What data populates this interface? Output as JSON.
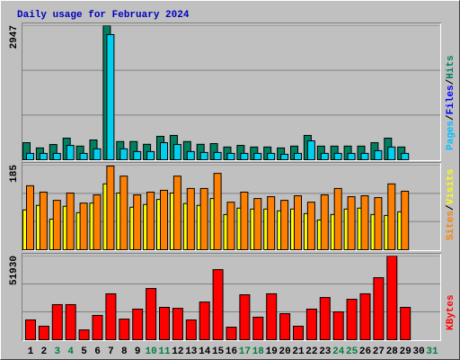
{
  "chart_data": [
    {
      "type": "bar",
      "title": "Daily usage for February 2024",
      "ylim": [
        0,
        2947
      ],
      "yticks": [
        2947
      ],
      "legend": [
        {
          "text": "Pages",
          "color": "#00c0ff"
        },
        {
          "text": "/",
          "color": "#000000"
        },
        {
          "text": "Files",
          "color": "#0000ff"
        },
        {
          "text": "/",
          "color": "#000000"
        },
        {
          "text": "Hits",
          "color": "#008060"
        }
      ],
      "series": [
        {
          "name": "Hits",
          "color": "#008060",
          "values": [
            375,
            260,
            335,
            475,
            300,
            435,
            2947,
            400,
            400,
            340,
            515,
            535,
            400,
            340,
            355,
            280,
            315,
            280,
            280,
            260,
            300,
            535,
            300,
            300,
            300,
            300,
            375,
            475,
            280,
            null,
            null
          ]
        },
        {
          "name": "Files",
          "color": "#00d0f0",
          "values": [
            140,
            140,
            140,
            315,
            140,
            240,
            2750,
            240,
            180,
            180,
            375,
            335,
            180,
            160,
            160,
            140,
            140,
            140,
            140,
            120,
            140,
            415,
            140,
            140,
            140,
            140,
            200,
            280,
            140,
            null,
            null
          ]
        }
      ]
    },
    {
      "type": "bar",
      "ylim": [
        0,
        185
      ],
      "yticks": [
        185
      ],
      "legend": [
        {
          "text": "Sites",
          "color": "#ff8000"
        },
        {
          "text": "/",
          "color": "#000000"
        },
        {
          "text": "Visits",
          "color": "#ffff00"
        }
      ],
      "series": [
        {
          "name": "Visits",
          "color": "#ffff00",
          "values": [
            87,
            97,
            67,
            95,
            81,
            102,
            144,
            124,
            93,
            99,
            110,
            124,
            101,
            97,
            112,
            77,
            91,
            89,
            89,
            85,
            89,
            79,
            65,
            77,
            89,
            91,
            77,
            75,
            83,
            null,
            null
          ]
        },
        {
          "name": "Sites",
          "color": "#ff8000",
          "values": [
            140,
            126,
            108,
            124,
            102,
            120,
            183,
            161,
            120,
            126,
            130,
            161,
            134,
            134,
            167,
            104,
            126,
            112,
            116,
            108,
            118,
            104,
            120,
            134,
            116,
            118,
            114,
            144,
            128,
            null,
            null
          ]
        }
      ]
    },
    {
      "type": "bar",
      "ylim": [
        0,
        51930
      ],
      "yticks": [
        51930
      ],
      "legend": [
        {
          "text": "KBytes",
          "color": "#ff0000"
        }
      ],
      "categories": [
        "1",
        "2",
        "3",
        "4",
        "5",
        "6",
        "7",
        "8",
        "9",
        "10",
        "11",
        "12",
        "13",
        "14",
        "15",
        "16",
        "17",
        "18",
        "19",
        "20",
        "21",
        "22",
        "23",
        "24",
        "25",
        "26",
        "27",
        "28",
        "29",
        "30",
        "31"
      ],
      "category_colors": [
        "#000000",
        "#000000",
        "#008040",
        "#008040",
        "#000000",
        "#000000",
        "#000000",
        "#000000",
        "#000000",
        "#008040",
        "#008040",
        "#000000",
        "#000000",
        "#000000",
        "#000000",
        "#000000",
        "#008040",
        "#008040",
        "#000000",
        "#000000",
        "#000000",
        "#000000",
        "#000000",
        "#008040",
        "#008040",
        "#000000",
        "#000000",
        "#000000",
        "#000000",
        "#000000",
        "#008040"
      ],
      "series": [
        {
          "name": "KBytes",
          "color": "#ff0000",
          "values": [
            12300,
            8400,
            21800,
            21800,
            6100,
            15100,
            28500,
            12800,
            19000,
            31800,
            20100,
            19500,
            12300,
            23400,
            43500,
            7800,
            27900,
            14000,
            28500,
            16200,
            8400,
            19000,
            26200,
            17300,
            25100,
            28500,
            38500,
            51930,
            20100,
            null,
            null
          ]
        }
      ]
    }
  ]
}
